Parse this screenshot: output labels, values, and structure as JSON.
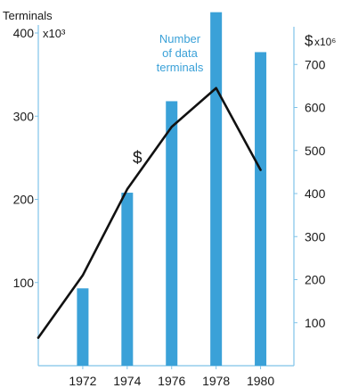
{
  "chart_data": {
    "type": "bar",
    "left_axis": {
      "title": "Terminals",
      "unit": "x10³",
      "range": [
        0,
        400
      ],
      "ticks": [
        100,
        200,
        300,
        400
      ],
      "tick_labels": [
        "100",
        "200",
        "300",
        "400"
      ]
    },
    "right_axis": {
      "title": "$",
      "unit": "x10⁶",
      "range": [
        0,
        800
      ],
      "ticks": [
        100,
        200,
        300,
        400,
        500,
        600,
        700
      ],
      "tick_labels": [
        "100",
        "200",
        "300",
        "400",
        "500",
        "600",
        "700"
      ]
    },
    "x_axis": {
      "range": [
        1970,
        1981.5
      ],
      "categories": [
        "1972",
        "1974",
        "1976",
        "1978",
        "1980"
      ]
    },
    "series": [
      {
        "name": "Number of data terminals",
        "type": "bar",
        "axis": "left",
        "color": "#3aa1d8",
        "x": [
          1972,
          1974,
          1976,
          1978,
          1980
        ],
        "values": [
          93,
          208,
          318,
          425,
          377
        ]
      },
      {
        "name": "$",
        "type": "line",
        "axis": "right",
        "color": "#111111",
        "x": [
          1970,
          1972,
          1974,
          1976,
          1978,
          1980
        ],
        "values": [
          65,
          210,
          410,
          555,
          645,
          455
        ]
      }
    ],
    "annotations": {
      "bar_label": [
        "Number",
        "of data",
        "terminals"
      ],
      "line_label": "$"
    },
    "grid": false
  }
}
